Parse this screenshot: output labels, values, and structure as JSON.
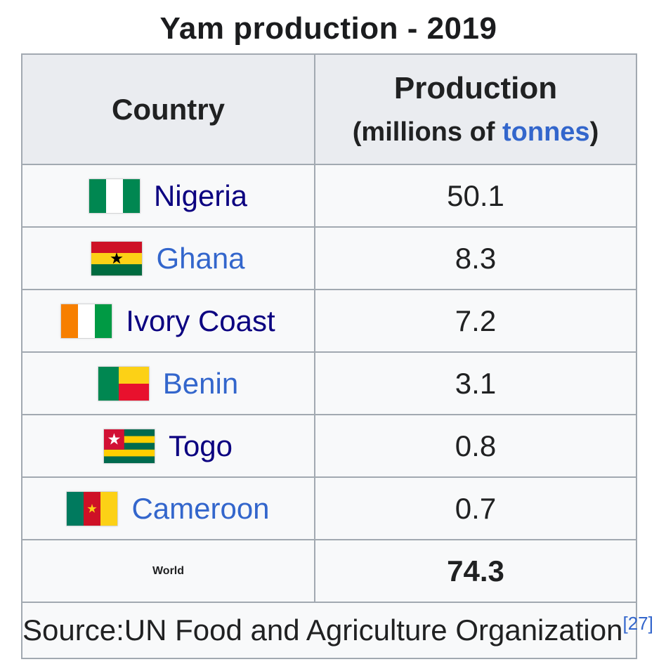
{
  "title": "Yam production - 2019",
  "table": {
    "header": {
      "country_label": "Country",
      "production_label": "Production",
      "production_unit_prefix": "(millions of ",
      "production_unit_link": "tonnes",
      "production_unit_suffix": ")"
    },
    "rows": [
      {
        "country": "Nigeria",
        "value": "50.1",
        "flag": "nigeria",
        "link_state": "visited"
      },
      {
        "country": "Ghana",
        "value": "8.3",
        "flag": "ghana",
        "link_state": "new"
      },
      {
        "country": "Ivory Coast",
        "value": "7.2",
        "flag": "ivory-coast",
        "link_state": "visited"
      },
      {
        "country": "Benin",
        "value": "3.1",
        "flag": "benin",
        "link_state": "new"
      },
      {
        "country": "Togo",
        "value": "0.8",
        "flag": "togo",
        "link_state": "visited"
      },
      {
        "country": "Cameroon",
        "value": "0.7",
        "flag": "cameroon",
        "link_state": "new"
      }
    ],
    "total_row": {
      "label": "World",
      "value": "74.3"
    },
    "source": {
      "text": "Source:UN Food and Agriculture Organization",
      "ref": "[27]"
    }
  },
  "chart_data": {
    "type": "table",
    "title": "Yam production - 2019",
    "columns": [
      "Country",
      "Production (millions of tonnes)"
    ],
    "categories": [
      "Nigeria",
      "Ghana",
      "Ivory Coast",
      "Benin",
      "Togo",
      "Cameroon",
      "World"
    ],
    "values": [
      50.1,
      8.3,
      7.2,
      3.1,
      0.8,
      0.7,
      74.3
    ],
    "source": "UN Food and Agriculture Organization [27]"
  },
  "colors": {
    "table_border": "#a2a9b1",
    "header_bg": "#eaecf0",
    "row_bg": "#f8f9fa",
    "text": "#202122",
    "link_new": "#3366cc",
    "link_visited": "#0b0080"
  }
}
